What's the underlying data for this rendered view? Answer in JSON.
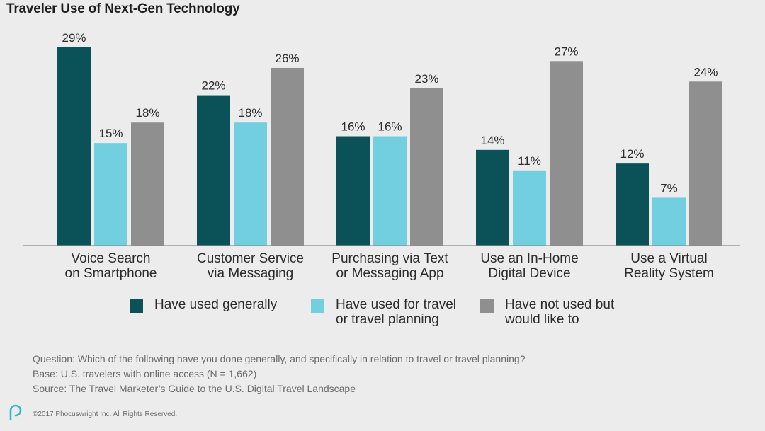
{
  "colors": {
    "series_0": "#0b5158",
    "series_1": "#71cfe0",
    "series_2": "#8f8f8f",
    "axis": "#8a8a8a",
    "logo": "#36b7c9"
  },
  "chart_data": {
    "type": "bar",
    "title": "Traveler Use of Next-Gen Technology",
    "categories": [
      [
        "Voice Search",
        "on Smartphone"
      ],
      [
        "Customer Service",
        "via Messaging"
      ],
      [
        "Purchasing via Text",
        "or Messaging App"
      ],
      [
        "Use an In-Home",
        "Digital Device"
      ],
      [
        "Use a Virtual",
        "Reality System"
      ]
    ],
    "series": [
      {
        "name": "Have used generally",
        "values": [
          29,
          22,
          16,
          14,
          12
        ],
        "labels": [
          "29%",
          "22%",
          "16%",
          "14%",
          "12%"
        ]
      },
      {
        "name": "Have used for travel\nor travel planning",
        "values": [
          15,
          18,
          16,
          11,
          7
        ],
        "labels": [
          "15%",
          "18%",
          "16%",
          "11%",
          "7%"
        ]
      },
      {
        "name": "Have not used but\nwould like to",
        "values": [
          18,
          26,
          23,
          27,
          24
        ],
        "labels": [
          "18%",
          "26%",
          "23%",
          "27%",
          "24%"
        ]
      }
    ],
    "ylim": [
      0,
      29
    ],
    "xlabel": "",
    "ylabel": "",
    "grid": false,
    "legend_position": "bottom"
  },
  "notes": {
    "question": "Question: Which of the following have you done generally, and specifically in relation to travel or travel planning?",
    "base": "Base: U.S. travelers with online access (N = 1,662)",
    "source": "Source: The Travel Marketer’s Guide to the U.S. Digital Travel Landscape"
  },
  "footer": {
    "copyright": "©2017 Phocuswright Inc. All Rights Reserved.",
    "logo_icon": "phocuswright-logo-icon"
  }
}
